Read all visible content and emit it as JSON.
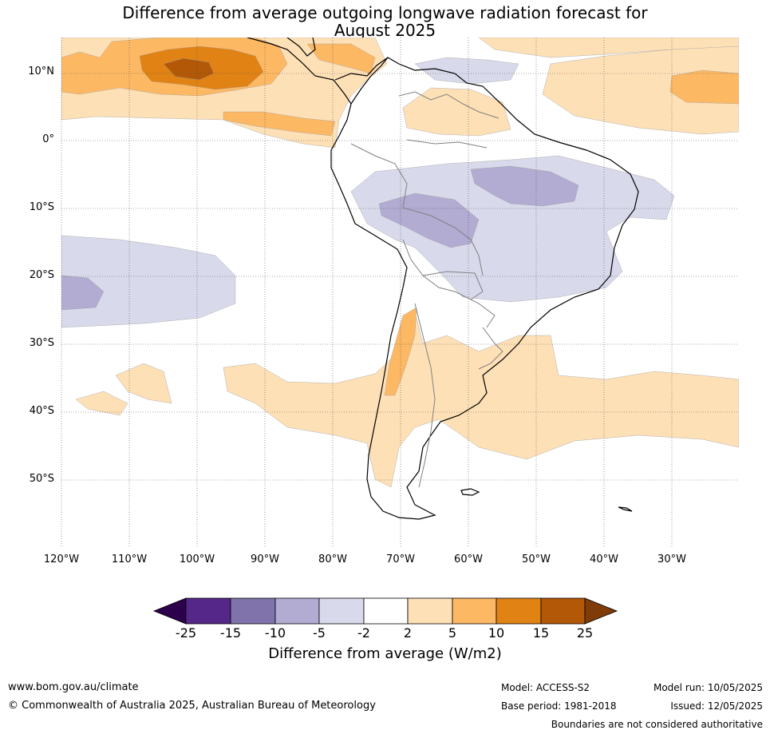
{
  "header": {
    "title_line1": "Difference from average outgoing longwave radiation forecast for",
    "title_line2": "August 2025"
  },
  "map": {
    "lat_labels": [
      "10°N",
      "0°",
      "10°S",
      "20°S",
      "30°S",
      "40°S",
      "50°S"
    ],
    "lon_labels": [
      "120°W",
      "110°W",
      "100°W",
      "90°W",
      "80°W",
      "70°W",
      "60°W",
      "50°W",
      "40°W",
      "30°W"
    ],
    "colors": {
      "strong_pos": "#b35806",
      "pos15": "#e08214",
      "pos10": "#fdb863",
      "pos5": "#fee0b6",
      "neg5": "#d8daeb",
      "neg10": "#b2abd2",
      "neg15": "#8073ac",
      "neg25": "#542788",
      "extreme_neg": "#2d004b",
      "extreme_pos": "#7f3b08",
      "coast": "#000000",
      "border": "#808080"
    }
  },
  "colorbar": {
    "ticks": [
      "-25",
      "-15",
      "-10",
      "-5",
      "-2",
      "2",
      "5",
      "10",
      "15",
      "25"
    ],
    "label": "Difference from average (W/m2)"
  },
  "footer": {
    "website": "www.bom.gov.au/climate",
    "copyright": "© Commonwealth of Australia 2025, Australian Bureau of Meteorology",
    "model": "Model: ACCESS-S2",
    "base_period": "Base period: 1981-2018",
    "model_run": "Model run: 10/05/2025",
    "issued": "Issued: 12/05/2025",
    "disclaimer": "Boundaries are not considered authoritative"
  }
}
